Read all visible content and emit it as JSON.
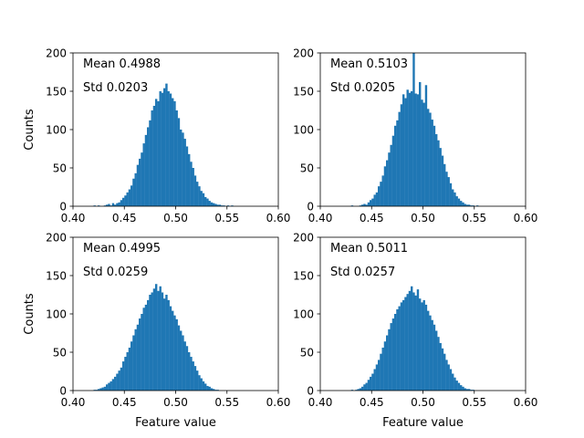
{
  "chart_data": [
    {
      "type": "bar",
      "stat_lines": [
        "Mean 0.4988",
        "Std 0.0203"
      ],
      "mean": 0.4988,
      "std": 0.0203,
      "xlim": [
        0.4,
        0.6
      ],
      "ylim": [
        0,
        200
      ],
      "x_ticks": [
        "0.40",
        "0.45",
        "0.50",
        "0.55",
        "0.60"
      ],
      "y_ticks": [
        "0",
        "50",
        "100",
        "150",
        "200"
      ],
      "xlabel": "",
      "ylabel": "Counts",
      "bin_width": 0.002,
      "bin_start": 0.42,
      "values": [
        1,
        0,
        1,
        0,
        0,
        1,
        2,
        3,
        1,
        4,
        2,
        4,
        5,
        8,
        11,
        14,
        18,
        22,
        27,
        36,
        43,
        54,
        62,
        70,
        82,
        93,
        103,
        112,
        125,
        131,
        140,
        137,
        150,
        148,
        154,
        160,
        150,
        147,
        141,
        137,
        125,
        115,
        100,
        96,
        88,
        78,
        68,
        58,
        50,
        40,
        32,
        26,
        20,
        17,
        12,
        10,
        7,
        5,
        4,
        3,
        2,
        2,
        1,
        1,
        0,
        1,
        0,
        1,
        0,
        0
      ]
    },
    {
      "type": "bar",
      "stat_lines": [
        "Mean 0.5103",
        "Std 0.0205"
      ],
      "mean": 0.5103,
      "std": 0.0205,
      "xlim": [
        0.4,
        0.6
      ],
      "ylim": [
        0,
        200
      ],
      "x_ticks": [
        "0.40",
        "0.45",
        "0.50",
        "0.55",
        "0.60"
      ],
      "y_ticks": [
        "0",
        "50",
        "100",
        "150",
        "200"
      ],
      "xlabel": "",
      "ylabel": "",
      "bin_width": 0.002,
      "bin_start": 0.43,
      "values": [
        1,
        0,
        0,
        0,
        1,
        2,
        3,
        2,
        5,
        8,
        10,
        15,
        18,
        26,
        32,
        40,
        52,
        60,
        70,
        80,
        92,
        105,
        112,
        123,
        133,
        146,
        141,
        152,
        148,
        150,
        200,
        147,
        146,
        162,
        139,
        135,
        158,
        127,
        122,
        113,
        105,
        94,
        86,
        76,
        66,
        55,
        45,
        38,
        30,
        22,
        18,
        13,
        10,
        7,
        5,
        3,
        2,
        2,
        1,
        1,
        0,
        1
      ]
    },
    {
      "type": "bar",
      "stat_lines": [
        "Mean 0.4995",
        "Std 0.0259"
      ],
      "mean": 0.4995,
      "std": 0.0259,
      "xlim": [
        0.4,
        0.6
      ],
      "ylim": [
        0,
        200
      ],
      "x_ticks": [
        "0.40",
        "0.45",
        "0.50",
        "0.55",
        "0.60"
      ],
      "y_ticks": [
        "0",
        "50",
        "100",
        "150",
        "200"
      ],
      "xlabel": "Feature value",
      "ylabel": "Counts",
      "bin_width": 0.002,
      "bin_start": 0.42,
      "values": [
        1,
        1,
        2,
        3,
        4,
        5,
        8,
        10,
        12,
        15,
        18,
        22,
        26,
        30,
        38,
        44,
        50,
        56,
        64,
        72,
        80,
        86,
        94,
        100,
        108,
        112,
        118,
        125,
        128,
        133,
        139,
        130,
        136,
        128,
        120,
        125,
        118,
        110,
        104,
        98,
        93,
        85,
        78,
        72,
        64,
        58,
        50,
        44,
        38,
        32,
        26,
        20,
        16,
        12,
        9,
        6,
        5,
        3,
        2,
        1,
        1
      ]
    },
    {
      "type": "bar",
      "stat_lines": [
        "Mean 0.5011",
        "Std 0.0257"
      ],
      "mean": 0.5011,
      "std": 0.0257,
      "xlim": [
        0.4,
        0.6
      ],
      "ylim": [
        0,
        200
      ],
      "x_ticks": [
        "0.40",
        "0.45",
        "0.50",
        "0.55",
        "0.60"
      ],
      "y_ticks": [
        "0",
        "50",
        "100",
        "150",
        "200"
      ],
      "xlabel": "Feature value",
      "ylabel": "",
      "bin_width": 0.002,
      "bin_start": 0.43,
      "values": [
        1,
        0,
        1,
        2,
        3,
        5,
        8,
        10,
        14,
        18,
        22,
        28,
        34,
        40,
        48,
        56,
        64,
        72,
        80,
        88,
        94,
        100,
        106,
        110,
        115,
        118,
        122,
        126,
        130,
        136,
        128,
        124,
        132,
        120,
        115,
        118,
        112,
        104,
        98,
        92,
        86,
        78,
        70,
        62,
        55,
        48,
        40,
        34,
        28,
        22,
        17,
        13,
        10,
        7,
        5,
        3,
        2,
        2,
        1,
        1
      ]
    }
  ],
  "colors": {
    "bar": "#1f77b4",
    "axis": "#000000",
    "background": "#ffffff"
  }
}
